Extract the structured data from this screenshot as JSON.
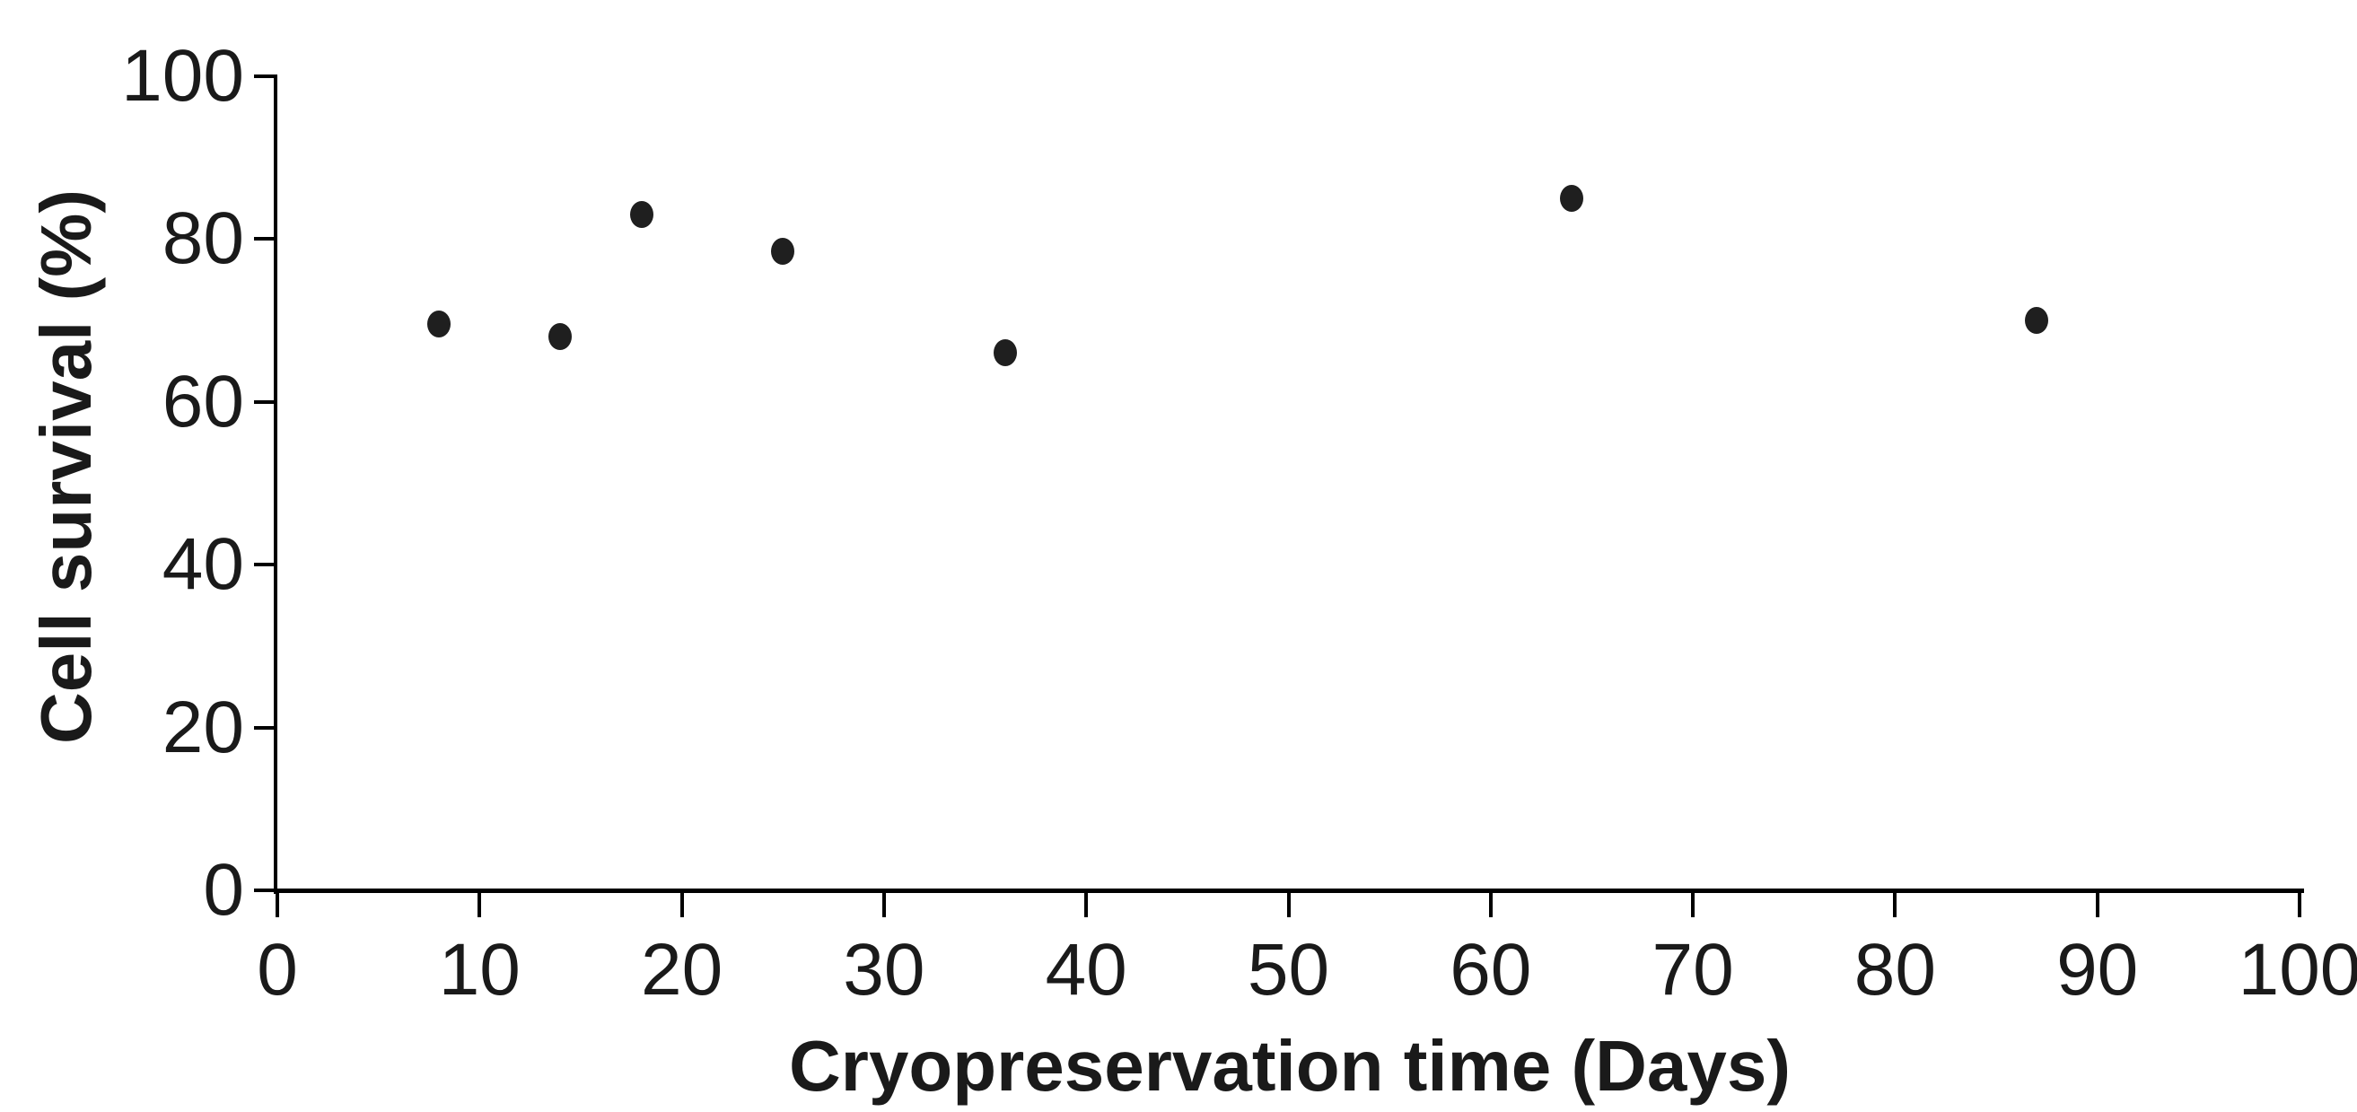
{
  "figure": {
    "background_color": "#ffffff",
    "axis_color": "#000000",
    "text_color": "#1a1a1a",
    "marker_color": "#1f1f1f"
  },
  "chart_data": {
    "type": "scatter",
    "title": "",
    "xlabel": "Cryopreservation time (Days)",
    "ylabel": "Cell survival (%)",
    "xlim": [
      0,
      100
    ],
    "ylim": [
      0,
      100
    ],
    "x_ticks": [
      0,
      10,
      20,
      30,
      40,
      50,
      60,
      70,
      80,
      90,
      100
    ],
    "y_ticks": [
      0,
      20,
      40,
      60,
      80,
      100
    ],
    "grid": false,
    "legend_position": "none",
    "series": [
      {
        "name": "cell-survival",
        "marker": "filled-circle",
        "color": "#1f1f1f",
        "points": [
          {
            "x": 8,
            "y": 69.5
          },
          {
            "x": 14,
            "y": 68
          },
          {
            "x": 18,
            "y": 83
          },
          {
            "x": 25,
            "y": 78.5
          },
          {
            "x": 36,
            "y": 66
          },
          {
            "x": 64,
            "y": 85
          },
          {
            "x": 87,
            "y": 70
          }
        ]
      }
    ]
  }
}
